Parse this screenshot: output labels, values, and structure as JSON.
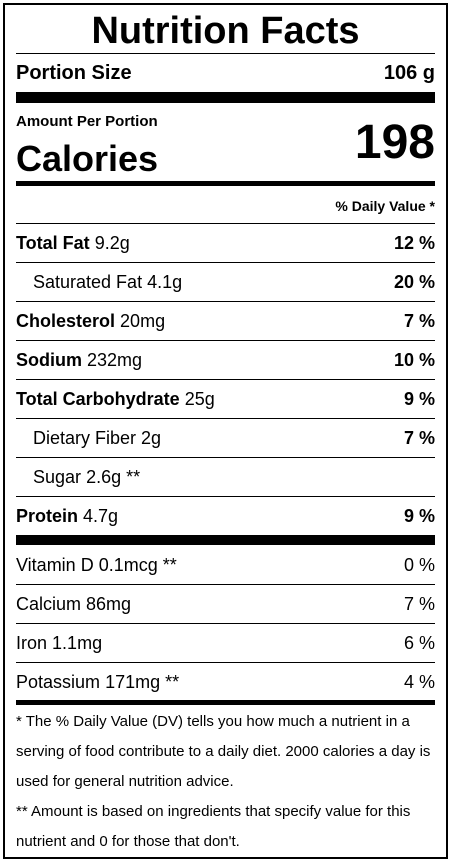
{
  "title": "Nutrition Facts",
  "portion": {
    "label": "Portion Size",
    "value": "106 g"
  },
  "amount_per_portion": "Amount Per Portion",
  "calories": {
    "label": "Calories",
    "value": "198"
  },
  "daily_value_header": "% Daily Value *",
  "nutrients": [
    {
      "name": "Total Fat",
      "amount": "9.2g",
      "dv": "12 %"
    },
    {
      "name": "Saturated Fat",
      "amount": "4.1g",
      "dv": "20 %"
    },
    {
      "name": "Cholesterol",
      "amount": "20mg",
      "dv": "7 %"
    },
    {
      "name": "Sodium",
      "amount": "232mg",
      "dv": "10 %"
    },
    {
      "name": "Total Carbohydrate",
      "amount": "25g",
      "dv": "9 %"
    },
    {
      "name": "Dietary Fiber",
      "amount": "2g",
      "dv": "7 %"
    },
    {
      "name": "Sugar",
      "amount": "2.6g **",
      "dv": ""
    },
    {
      "name": "Protein",
      "amount": "4.7g",
      "dv": "9 %"
    }
  ],
  "vitamins": [
    {
      "name": "Vitamin D",
      "amount": "0.1mcg **",
      "dv": "0 %"
    },
    {
      "name": "Calcium",
      "amount": "86mg",
      "dv": "7 %"
    },
    {
      "name": "Iron",
      "amount": "1.1mg",
      "dv": "6 %"
    },
    {
      "name": "Potassium",
      "amount": "171mg **",
      "dv": "4 %"
    }
  ],
  "footnotes": [
    "* The % Daily Value (DV) tells you how much a nutrient in a serving of food contribute to a daily diet. 2000 calories a day is used for general nutrition advice.",
    "** Amount is based on ingredients that specify value for this nutrient and 0 for those that don't."
  ]
}
